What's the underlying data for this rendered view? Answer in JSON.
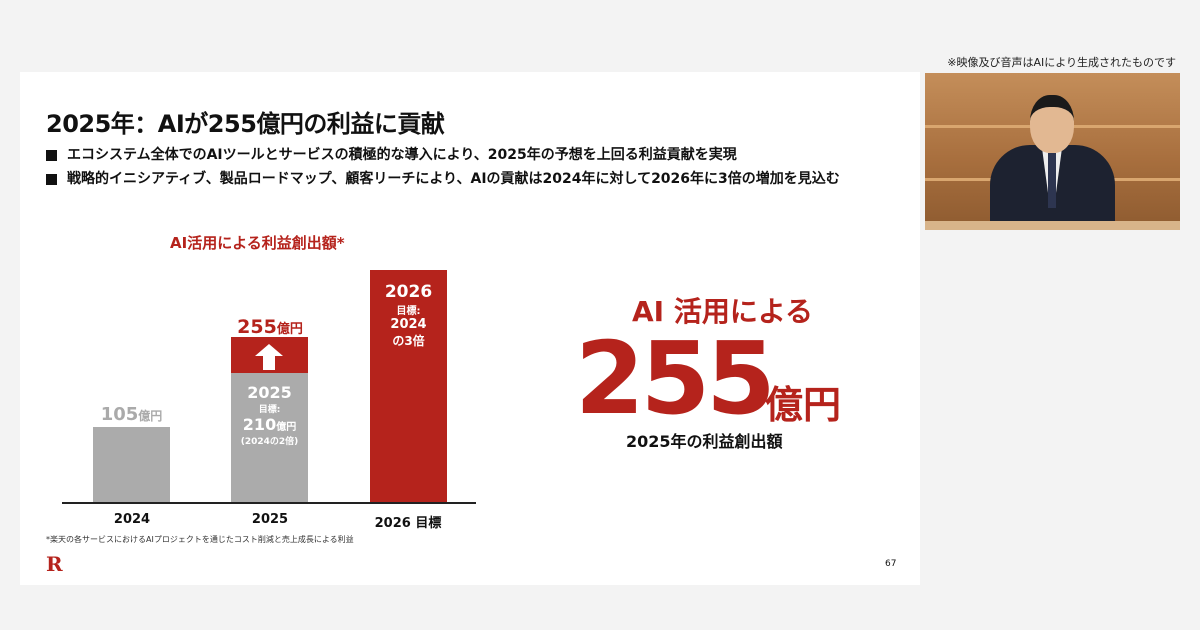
{
  "notice": "※映像及び音声はAIにより生成されたものです",
  "slide": {
    "title": "2025年：AIが255億円の利益に貢献",
    "bullets": [
      "エコシステム全体でのAIツールとサービスの積極的な導入により、2025年の予想を上回る利益貢献を実現",
      "戦略的イニシアティブ、製品ロードマップ、顧客リーチにより、AIの貢献は2024年に対して2026年に3倍の増加を見込む"
    ],
    "page_number": "67",
    "logo": "R",
    "footnote": "*楽天の各サービスにおけるAIプロジェクトを通じたコスト削減と売上成長による利益",
    "highlight": {
      "label": "AI 活用による",
      "value": "255",
      "unit": "億円",
      "caption": "2025年の利益創出額"
    }
  },
  "chart_data": {
    "type": "bar",
    "title": "AI活用による利益創出額*",
    "categories": [
      "2024",
      "2025",
      "2026 目標"
    ],
    "bars": [
      {
        "label": "105億円",
        "value_text": "105",
        "unit": "億円"
      },
      {
        "actual_label": "255億円",
        "actual_value": "255",
        "unit": "億円",
        "target_year": "2025",
        "target_label": "目標:",
        "target_value": "210",
        "target_unit": "億円",
        "target_note": "(2024の2倍)"
      },
      {
        "year": "2026",
        "line1": "目標:",
        "line2": "2024",
        "line3": "の3倍"
      }
    ],
    "colors": {
      "gray": "#ababab",
      "red": "#b5231c"
    }
  }
}
